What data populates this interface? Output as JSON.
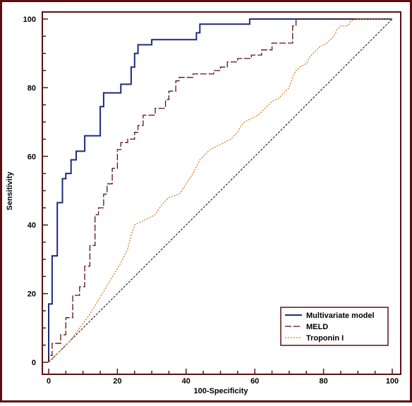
{
  "chart_data": {
    "type": "line",
    "title": "",
    "xlabel": "100-Specificity",
    "ylabel": "Sensitivity",
    "xlim": [
      0,
      100
    ],
    "ylim": [
      0,
      100
    ],
    "xticks": [
      "0",
      "20",
      "40",
      "60",
      "80",
      "100"
    ],
    "yticks": [
      "0",
      "20",
      "40",
      "60",
      "80",
      "100"
    ],
    "grid": false,
    "legend_position": "bottom-right",
    "reference_line": {
      "style": "dashed",
      "color": "#000000",
      "points": [
        [
          0,
          0
        ],
        [
          100,
          100
        ]
      ]
    },
    "series": [
      {
        "name": "Multivariate model",
        "color": "#1f2a7a",
        "style": "solid",
        "points": [
          [
            0,
            0
          ],
          [
            0,
            17
          ],
          [
            1,
            17
          ],
          [
            1,
            31
          ],
          [
            2.5,
            31
          ],
          [
            2.5,
            46.5
          ],
          [
            4,
            46.5
          ],
          [
            4,
            53.5
          ],
          [
            5,
            53.5
          ],
          [
            5,
            55
          ],
          [
            6.5,
            55
          ],
          [
            6.5,
            59
          ],
          [
            8,
            59
          ],
          [
            8,
            61.5
          ],
          [
            10.5,
            61.5
          ],
          [
            10.5,
            66
          ],
          [
            15,
            66
          ],
          [
            15,
            74.5
          ],
          [
            16,
            74.5
          ],
          [
            16,
            78.5
          ],
          [
            21,
            78.5
          ],
          [
            21,
            81
          ],
          [
            24,
            81
          ],
          [
            24,
            86
          ],
          [
            25,
            86
          ],
          [
            25,
            90
          ],
          [
            26,
            90
          ],
          [
            26,
            92.5
          ],
          [
            30,
            92.5
          ],
          [
            30,
            94
          ],
          [
            43,
            94
          ],
          [
            43,
            96
          ],
          [
            44,
            96
          ],
          [
            44,
            98.5
          ],
          [
            58.5,
            98.5
          ],
          [
            58.5,
            100
          ],
          [
            100,
            100
          ]
        ]
      },
      {
        "name": "MELD",
        "color": "#5a1010",
        "style": "dash",
        "points": [
          [
            0,
            0
          ],
          [
            0,
            2
          ],
          [
            1,
            2
          ],
          [
            1,
            5.5
          ],
          [
            3.5,
            5.5
          ],
          [
            3.5,
            8
          ],
          [
            5,
            8
          ],
          [
            5,
            13
          ],
          [
            7,
            13
          ],
          [
            7,
            19.5
          ],
          [
            9,
            19.5
          ],
          [
            9,
            22
          ],
          [
            10.5,
            22
          ],
          [
            10.5,
            28
          ],
          [
            12,
            28
          ],
          [
            12,
            34
          ],
          [
            13.5,
            34
          ],
          [
            13.5,
            43
          ],
          [
            14.5,
            43
          ],
          [
            14.5,
            45
          ],
          [
            16,
            45
          ],
          [
            16,
            49
          ],
          [
            17,
            49
          ],
          [
            17,
            52
          ],
          [
            18.5,
            52
          ],
          [
            18.5,
            56.5
          ],
          [
            20,
            56.5
          ],
          [
            20,
            62
          ],
          [
            21,
            62
          ],
          [
            21,
            64
          ],
          [
            23,
            64
          ],
          [
            23,
            65
          ],
          [
            25,
            65
          ],
          [
            25,
            67
          ],
          [
            26,
            67
          ],
          [
            26,
            69
          ],
          [
            27.5,
            69
          ],
          [
            27.5,
            72
          ],
          [
            31,
            72
          ],
          [
            31,
            74
          ],
          [
            34,
            74
          ],
          [
            34,
            76.5
          ],
          [
            35,
            76.5
          ],
          [
            35,
            79
          ],
          [
            37,
            79
          ],
          [
            37,
            82
          ],
          [
            38,
            82
          ],
          [
            38,
            83
          ],
          [
            42,
            83
          ],
          [
            42,
            84
          ],
          [
            48,
            84
          ],
          [
            48,
            85
          ],
          [
            50,
            85
          ],
          [
            50,
            86
          ],
          [
            52,
            86
          ],
          [
            52,
            87.5
          ],
          [
            55,
            87.5
          ],
          [
            55,
            88.5
          ],
          [
            59,
            88.5
          ],
          [
            59,
            89.5
          ],
          [
            62,
            89.5
          ],
          [
            62,
            91
          ],
          [
            65,
            91
          ],
          [
            65,
            93
          ],
          [
            71,
            93
          ],
          [
            71,
            98
          ],
          [
            72,
            98
          ],
          [
            72,
            100
          ],
          [
            100,
            100
          ]
        ]
      },
      {
        "name": "Troponin I",
        "color": "#d07a1c",
        "style": "dot",
        "points": [
          [
            0,
            0
          ],
          [
            3,
            3
          ],
          [
            6,
            6
          ],
          [
            9,
            10
          ],
          [
            12,
            14
          ],
          [
            15,
            19
          ],
          [
            18,
            24
          ],
          [
            21,
            29
          ],
          [
            23,
            33
          ],
          [
            24,
            37
          ],
          [
            25,
            40
          ],
          [
            27,
            41
          ],
          [
            29,
            42
          ],
          [
            31,
            43
          ],
          [
            33,
            46
          ],
          [
            35,
            48
          ],
          [
            38,
            49
          ],
          [
            40,
            52
          ],
          [
            42,
            55
          ],
          [
            44,
            59
          ],
          [
            46,
            61
          ],
          [
            47,
            62
          ],
          [
            49,
            63
          ],
          [
            51,
            64
          ],
          [
            53,
            65
          ],
          [
            55,
            67
          ],
          [
            56,
            69
          ],
          [
            57,
            70
          ],
          [
            59,
            71
          ],
          [
            61,
            72
          ],
          [
            63,
            74
          ],
          [
            65,
            76
          ],
          [
            67,
            77
          ],
          [
            69,
            79
          ],
          [
            70,
            80
          ],
          [
            71,
            83
          ],
          [
            72,
            85
          ],
          [
            73,
            86
          ],
          [
            75,
            87
          ],
          [
            76,
            89
          ],
          [
            77,
            90
          ],
          [
            79,
            92
          ],
          [
            81,
            93
          ],
          [
            82,
            94
          ],
          [
            83,
            95
          ],
          [
            84,
            97
          ],
          [
            85,
            98
          ],
          [
            87,
            98
          ],
          [
            88,
            99.5
          ],
          [
            90,
            100
          ],
          [
            100,
            100
          ]
        ]
      }
    ]
  }
}
